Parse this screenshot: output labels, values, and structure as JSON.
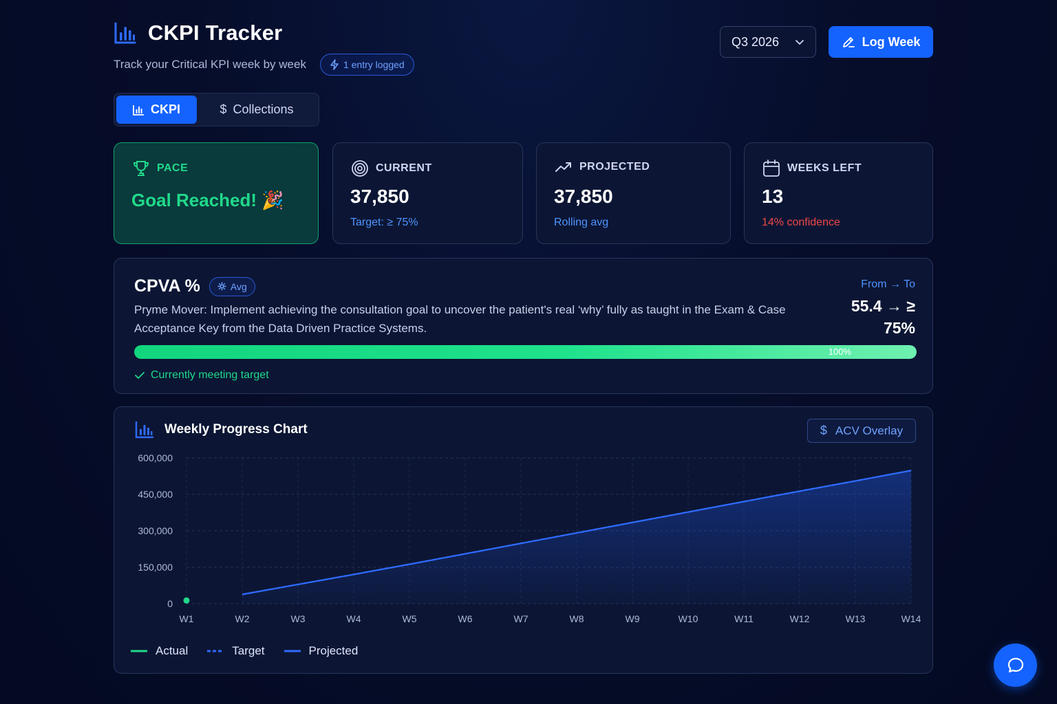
{
  "header": {
    "title": "CKPI Tracker",
    "subtitle": "Track your Critical KPI week by week",
    "entries_badge": "1 entry logged",
    "quarter": "Q3 2026",
    "log_button": "Log Week"
  },
  "tabs": [
    {
      "label": "CKPI",
      "active": true
    },
    {
      "label": "Collections",
      "active": false
    }
  ],
  "stats": {
    "pace": {
      "label": "PACE",
      "value": "Goal Reached! 🎉"
    },
    "current": {
      "label": "CURRENT",
      "value": "37,850",
      "sub": "Target: ≥ 75%"
    },
    "projected": {
      "label": "PROJECTED",
      "value": "37,850",
      "sub": "Rolling avg"
    },
    "weeks_left": {
      "label": "WEEKS LEFT",
      "value": "13",
      "sub": "14% confidence"
    }
  },
  "kpi": {
    "title": "CPVA %",
    "badge": "Avg",
    "description": "Pryme Mover: Implement achieving the consultation goal to uncover the patient's real ‘why’ fully as taught in the Exam & Case Acceptance Key from the Data Driven Practice Systems.",
    "from_to_label": "From → To",
    "from_to_value": "55.4 → ≥ 75%",
    "progress_percent": 100,
    "progress_label": "100%",
    "status": "Currently meeting target"
  },
  "chart": {
    "title": "Weekly Progress Chart",
    "overlay_button": "ACV Overlay",
    "legend": [
      "Actual",
      "Target",
      "Projected"
    ]
  },
  "chart_data": {
    "type": "line",
    "x": [
      "W1",
      "W2",
      "W3",
      "W4",
      "W5",
      "W6",
      "W7",
      "W8",
      "W9",
      "W10",
      "W11",
      "W12",
      "W13",
      "W14"
    ],
    "yticks": [
      "600,000",
      "450,000",
      "300,000",
      "150,000",
      "0"
    ],
    "ylim": [
      0,
      600000
    ],
    "grid": true,
    "legend_position": "bottom-left",
    "series": [
      {
        "name": "Actual",
        "color": "#21d98a",
        "values": [
          13000,
          null,
          null,
          null,
          null,
          null,
          null,
          null,
          null,
          null,
          null,
          null,
          null,
          null
        ]
      },
      {
        "name": "Target",
        "color": "#2f6bff",
        "dashed": true,
        "values": [
          null,
          37850,
          79000,
          120000,
          162000,
          205000,
          248000,
          291000,
          334000,
          377000,
          420000,
          463000,
          505000,
          548000
        ]
      },
      {
        "name": "Projected",
        "color": "#2f6bff",
        "values": [
          null,
          37850,
          79000,
          120000,
          162000,
          205000,
          248000,
          291000,
          334000,
          377000,
          420000,
          463000,
          505000,
          548000
        ]
      }
    ]
  },
  "colors": {
    "accent": "#1463ff",
    "success": "#21d98a",
    "danger": "#f04848",
    "link": "#4f93ff"
  }
}
